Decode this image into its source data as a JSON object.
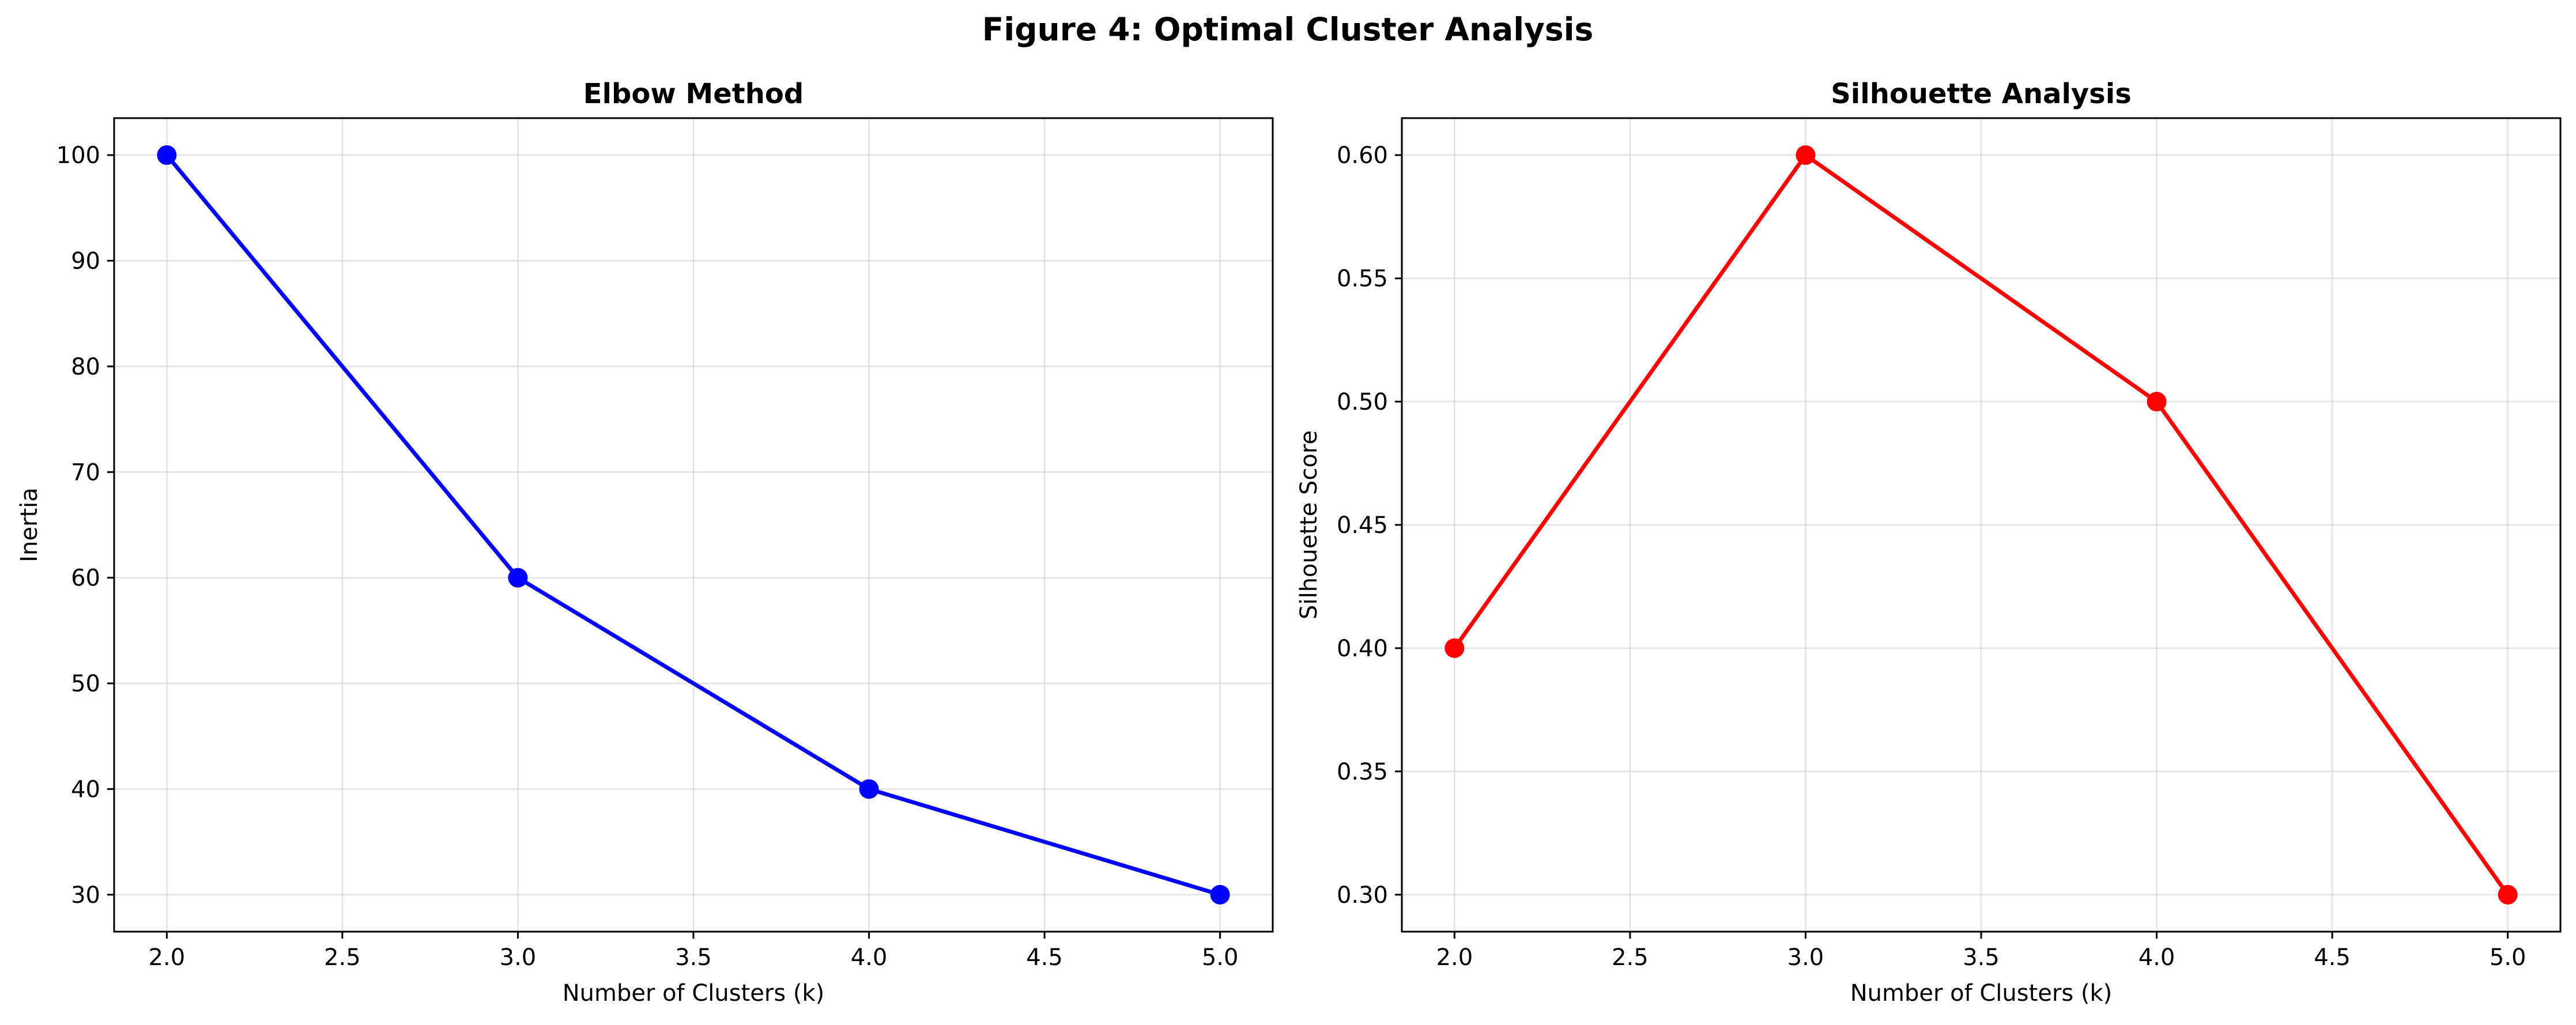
{
  "figure": {
    "title": "Figure 4: Optimal Cluster Analysis"
  },
  "chart_data": [
    {
      "type": "line",
      "title": "Elbow Method",
      "xlabel": "Number of Clusters (k)",
      "ylabel": "Inertia",
      "x": [
        2,
        3,
        4,
        5
      ],
      "series": [
        {
          "values": [
            100,
            60,
            40,
            30
          ],
          "color": "#0000ff"
        }
      ],
      "xlim": [
        1.85,
        5.15
      ],
      "ylim": [
        26.5,
        103.5
      ],
      "xticks": [
        2.0,
        2.5,
        3.0,
        3.5,
        4.0,
        4.5,
        5.0
      ],
      "xtick_labels": [
        "2.0",
        "2.5",
        "3.0",
        "3.5",
        "4.0",
        "4.5",
        "5.0"
      ],
      "yticks": [
        30,
        40,
        50,
        60,
        70,
        80,
        90,
        100
      ],
      "ytick_labels": [
        "30",
        "40",
        "50",
        "60",
        "70",
        "80",
        "90",
        "100"
      ],
      "grid": true,
      "marker": "circle"
    },
    {
      "type": "line",
      "title": "Silhouette Analysis",
      "xlabel": "Number of Clusters (k)",
      "ylabel": "Silhouette Score",
      "x": [
        2,
        3,
        4,
        5
      ],
      "series": [
        {
          "values": [
            0.4,
            0.6,
            0.5,
            0.3
          ],
          "color": "#ff0000"
        }
      ],
      "xlim": [
        1.85,
        5.15
      ],
      "ylim": [
        0.285,
        0.615
      ],
      "xticks": [
        2.0,
        2.5,
        3.0,
        3.5,
        4.0,
        4.5,
        5.0
      ],
      "xtick_labels": [
        "2.0",
        "2.5",
        "3.0",
        "3.5",
        "4.0",
        "4.5",
        "5.0"
      ],
      "yticks": [
        0.3,
        0.35,
        0.4,
        0.45,
        0.5,
        0.55,
        0.6
      ],
      "ytick_labels": [
        "0.30",
        "0.35",
        "0.40",
        "0.45",
        "0.50",
        "0.55",
        "0.60"
      ],
      "grid": true,
      "marker": "circle"
    }
  ]
}
